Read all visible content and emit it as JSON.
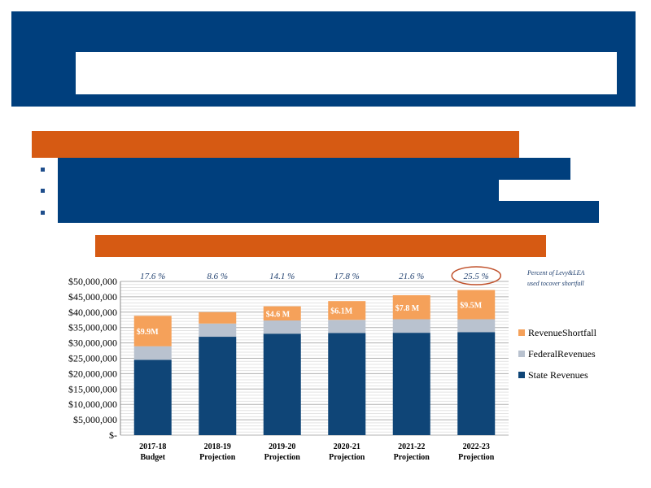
{
  "colors": {
    "header_blue": "#003f7d",
    "accent_orange": "#d65a13",
    "state": "#0f4577",
    "federal": "#b9c2cf",
    "shortfall": "#f5a15a",
    "highlight_circle": "#c0502a"
  },
  "note": {
    "line1": "Percent of Levy&LEA",
    "line2": "used tocover shortfall"
  },
  "chart_data": {
    "type": "bar",
    "stacked": true,
    "categories": [
      [
        "2017-18",
        "Budget"
      ],
      [
        "2018-19",
        "Projection"
      ],
      [
        "2019-20",
        "Projection"
      ],
      [
        "2020-21",
        "Projection"
      ],
      [
        "2021-22",
        "Projection"
      ],
      [
        "2022-23",
        "Projection"
      ]
    ],
    "series": [
      {
        "name": "State     Revenues",
        "color": "#0f4577",
        "values": [
          24500000,
          32000000,
          33000000,
          33200000,
          33300000,
          33500000
        ]
      },
      {
        "name": "FederalRevenues",
        "color": "#b9c2cf",
        "values": [
          4400000,
          4300000,
          4300000,
          4300000,
          4400000,
          4200000
        ]
      },
      {
        "name": "RevenueShortfall",
        "color": "#f5a15a",
        "values": [
          9900000,
          3700000,
          4600000,
          6100000,
          7800000,
          9500000
        ]
      }
    ],
    "bar_labels": [
      "$9.9M",
      "",
      "$4.6     M",
      "$6.1M",
      "$7.8     M",
      "$9.5M"
    ],
    "percent_labels": [
      "17.6     %",
      "8.6     %",
      "14.1     %",
      "17.8     %",
      "21.6     %",
      "25.5     %"
    ],
    "highlighted_index": 5,
    "y_ticks": [
      0,
      5000000,
      10000000,
      15000000,
      20000000,
      25000000,
      30000000,
      35000000,
      40000000,
      45000000,
      50000000
    ],
    "y_tick_labels": [
      "$-",
      "$5,000,000",
      "$10,000,000",
      "$15,000,000",
      "$20,000,000",
      "$25,000,000",
      "$30,000,000",
      "$35,000,000",
      "$40,000,000",
      "$45,000,000",
      "$50,000,000"
    ],
    "ylim": [
      0,
      50000000
    ],
    "legend_order": [
      2,
      1,
      0
    ],
    "legend_position": "right",
    "grid": "horizontal"
  }
}
